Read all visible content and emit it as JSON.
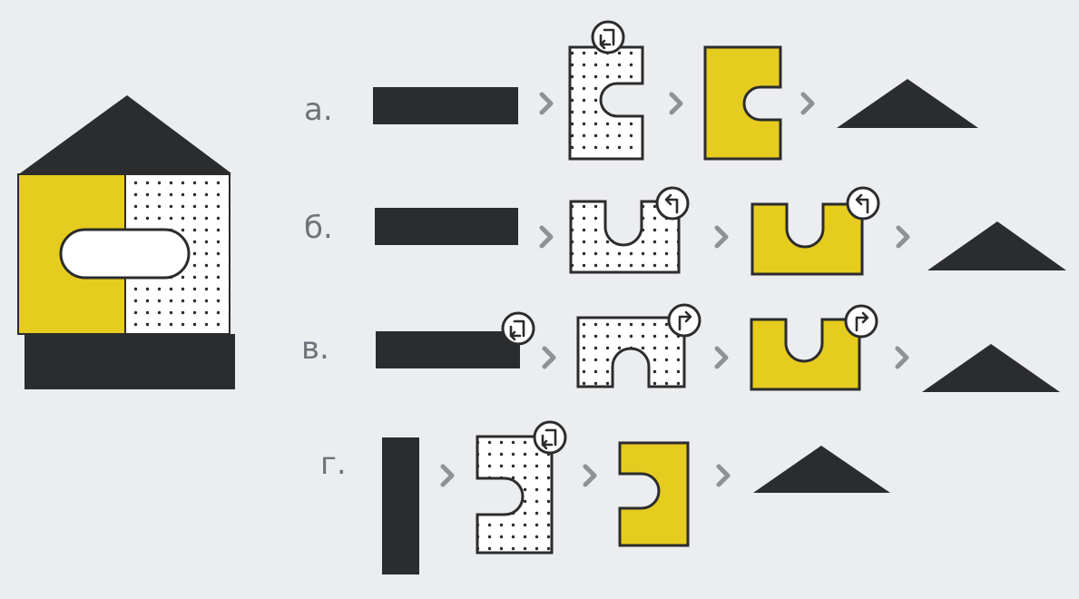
{
  "colors": {
    "background": "#ecedef",
    "dark": "#2b2c2e",
    "yellow": "#e6cc1f",
    "dots_fill": "#ffffff",
    "chevron": "#8e9196",
    "label": "#6f7278"
  },
  "icons": {
    "rotate_down_left": "rotate-down-left-icon",
    "rotate_left": "rotate-left-icon",
    "rotate_right": "rotate-right-icon",
    "chevron": "chevron-right-icon"
  },
  "rows": [
    {
      "label": "а."
    },
    {
      "label": "б."
    },
    {
      "label": "в."
    },
    {
      "label": "г."
    }
  ]
}
